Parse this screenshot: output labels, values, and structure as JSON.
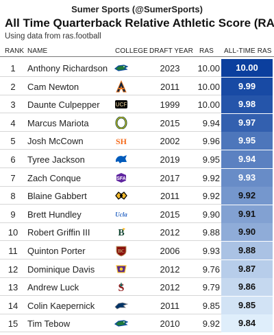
{
  "brand": "Sumer Sports (@SumerSports)",
  "title": "All Time Quarterback Relative Athletic Score (RAS)",
  "subtitle": "Using data from ras.football",
  "columns": {
    "rank": "RANK",
    "name": "NAME",
    "college": "COLLEGE",
    "draft_year": "DRAFT YEAR",
    "ras": "RAS",
    "all_time_ras": "ALL-TIME RAS"
  },
  "colors": {
    "heat_low": "#dfeefb",
    "heat_high": "#0b3f9e",
    "text_dark": "#111111",
    "text_light": "#ffffff"
  },
  "chart_data": {
    "type": "table",
    "title": "All Time Quarterback Relative Athletic Score (RAS)",
    "columns": [
      "RANK",
      "NAME",
      "COLLEGE",
      "DRAFT YEAR",
      "RAS",
      "ALL-TIME RAS"
    ],
    "rows": [
      {
        "rank": "1",
        "name": "Anthony Richardson",
        "college_icon": "florida-gators-logo",
        "draft_year": "2023",
        "ras": "10.00",
        "all_time_ras": "10.00",
        "all_time_value": 10.0
      },
      {
        "rank": "2",
        "name": "Cam Newton",
        "college_icon": "auburn-logo",
        "draft_year": "2011",
        "ras": "10.00",
        "all_time_ras": "9.99",
        "all_time_value": 9.99
      },
      {
        "rank": "3",
        "name": "Daunte Culpepper",
        "college_icon": "ucf-knights-logo",
        "draft_year": "1999",
        "ras": "10.00",
        "all_time_ras": "9.98",
        "all_time_value": 9.98
      },
      {
        "rank": "4",
        "name": "Marcus Mariota",
        "college_icon": "oregon-logo",
        "draft_year": "2015",
        "ras": "9.94",
        "all_time_ras": "9.97",
        "all_time_value": 9.97
      },
      {
        "rank": "5",
        "name": "Josh McCown",
        "college_icon": "sam-houston-logo",
        "draft_year": "2002",
        "ras": "9.96",
        "all_time_ras": "9.95",
        "all_time_value": 9.95
      },
      {
        "rank": "6",
        "name": "Tyree Jackson",
        "college_icon": "buffalo-bulls-logo",
        "draft_year": "2019",
        "ras": "9.95",
        "all_time_ras": "9.94",
        "all_time_value": 9.94
      },
      {
        "rank": "7",
        "name": "Zach Conque",
        "college_icon": "stephen-f-austin-logo",
        "draft_year": "2017",
        "ras": "9.92",
        "all_time_ras": "9.93",
        "all_time_value": 9.93
      },
      {
        "rank": "8",
        "name": "Blaine Gabbert",
        "college_icon": "missouri-logo",
        "draft_year": "2011",
        "ras": "9.92",
        "all_time_ras": "9.92",
        "all_time_value": 9.92
      },
      {
        "rank": "9",
        "name": "Brett Hundley",
        "college_icon": "ucla-logo",
        "draft_year": "2015",
        "ras": "9.90",
        "all_time_ras": "9.91",
        "all_time_value": 9.91
      },
      {
        "rank": "10",
        "name": "Robert Griffin III",
        "college_icon": "baylor-logo",
        "draft_year": "2012",
        "ras": "9.88",
        "all_time_ras": "9.90",
        "all_time_value": 9.9
      },
      {
        "rank": "11",
        "name": "Quinton Porter",
        "college_icon": "boston-college-logo",
        "draft_year": "2006",
        "ras": "9.93",
        "all_time_ras": "9.88",
        "all_time_value": 9.88
      },
      {
        "rank": "12",
        "name": "Dominique Davis",
        "college_icon": "east-carolina-logo",
        "draft_year": "2012",
        "ras": "9.76",
        "all_time_ras": "9.87",
        "all_time_value": 9.87
      },
      {
        "rank": "13",
        "name": "Andrew Luck",
        "college_icon": "stanford-logo",
        "draft_year": "2012",
        "ras": "9.79",
        "all_time_ras": "9.86",
        "all_time_value": 9.86
      },
      {
        "rank": "14",
        "name": "Colin Kaepernick",
        "college_icon": "nevada-wolf-pack-logo",
        "draft_year": "2011",
        "ras": "9.85",
        "all_time_ras": "9.85",
        "all_time_value": 9.85
      },
      {
        "rank": "15",
        "name": "Tim Tebow",
        "college_icon": "florida-gators-logo",
        "draft_year": "2010",
        "ras": "9.92",
        "all_time_ras": "9.84",
        "all_time_value": 9.84
      }
    ]
  }
}
